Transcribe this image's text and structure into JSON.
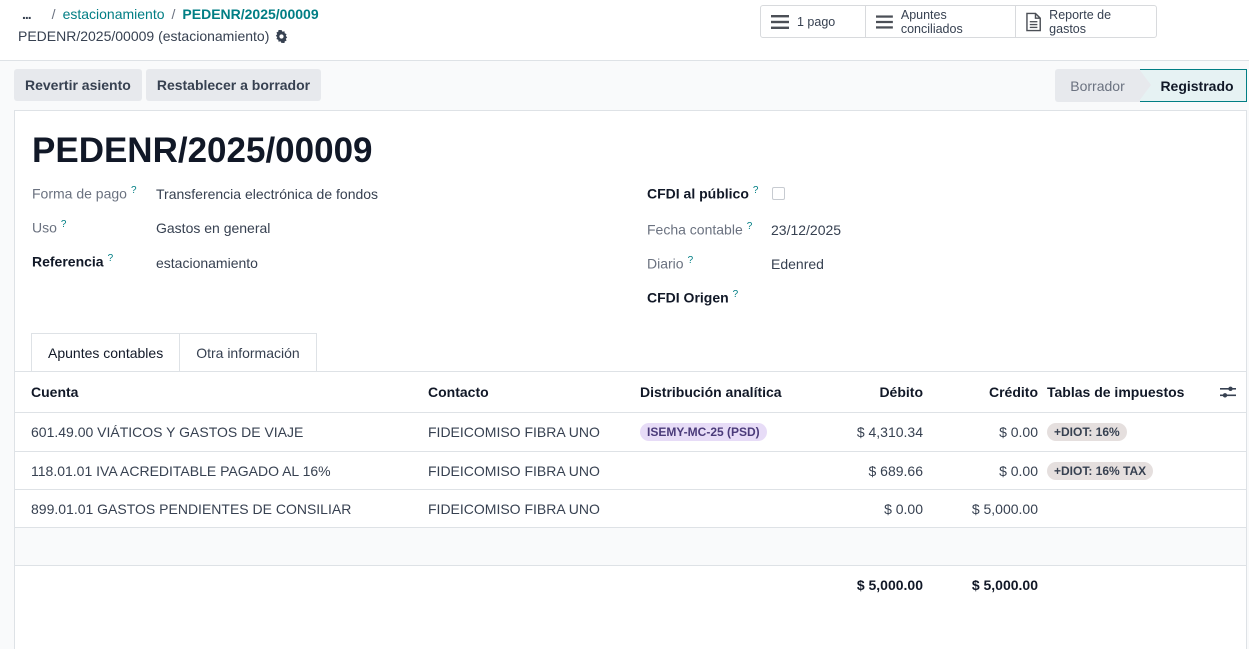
{
  "breadcrumb": {
    "dots": "...",
    "separator": "/",
    "parent": "estacionamiento",
    "current": "PEDENR/2025/00009"
  },
  "record_subtitle": "PEDENR/2025/00009 (estacionamiento)",
  "smart_buttons": [
    {
      "label": "1 pago",
      "icon": "list-icon"
    },
    {
      "label": "Apuntes conciliados",
      "icon": "list-icon"
    },
    {
      "label": "Reporte de gastos",
      "icon": "document-icon"
    }
  ],
  "actions": {
    "revert": "Revertir asiento",
    "reset": "Restablecer a borrador"
  },
  "statusbar": {
    "draft": "Borrador",
    "posted": "Registrado"
  },
  "form": {
    "title": "PEDENR/2025/00009",
    "left": {
      "forma_pago": {
        "label": "Forma de pago",
        "value": "Transferencia electrónica de fondos"
      },
      "uso": {
        "label": "Uso",
        "value": "Gastos en general"
      },
      "referencia": {
        "label": "Referencia",
        "value": "estacionamiento"
      }
    },
    "right": {
      "cfdi_publico": {
        "label": "CFDI al público",
        "checked": false
      },
      "fecha_contable": {
        "label": "Fecha contable",
        "value": "23/12/2025"
      },
      "diario": {
        "label": "Diario",
        "value": "Edenred"
      },
      "cfdi_origen": {
        "label": "CFDI Origen",
        "value": ""
      }
    },
    "help_mark": "?"
  },
  "tabs": [
    {
      "label": "Apuntes contables",
      "active": true
    },
    {
      "label": "Otra información",
      "active": false
    }
  ],
  "lines": {
    "columns": [
      "Cuenta",
      "Contacto",
      "Distribución analítica",
      "Débito",
      "Crédito",
      "Tablas de impuestos"
    ],
    "rows": [
      {
        "account": "601.49.00 VIÁTICOS Y GASTOS DE VIAJE",
        "partner": "FIDEICOMISO FIBRA UNO",
        "analytic": "ISEMY-MC-25 (PSD)",
        "debit": "$ 4,310.34",
        "credit": "$ 0.00",
        "tax": "+DIOT: 16%"
      },
      {
        "account": "118.01.01 IVA ACREDITABLE PAGADO AL 16%",
        "partner": "FIDEICOMISO FIBRA UNO",
        "analytic": "",
        "debit": "$ 689.66",
        "credit": "$ 0.00",
        "tax": "+DIOT: 16% TAX"
      },
      {
        "account": "899.01.01 GASTOS PENDIENTES DE CONSILIAR",
        "partner": "FIDEICOMISO FIBRA UNO",
        "analytic": "",
        "debit": "$ 0.00",
        "credit": "$ 5,000.00",
        "tax": ""
      }
    ],
    "totals": {
      "debit": "$ 5,000.00",
      "credit": "$ 5,000.00"
    }
  },
  "colors": {
    "accent": "#017e84",
    "analytic_tag": "#e7dcf7",
    "tax_tag": "#e5dfde"
  }
}
